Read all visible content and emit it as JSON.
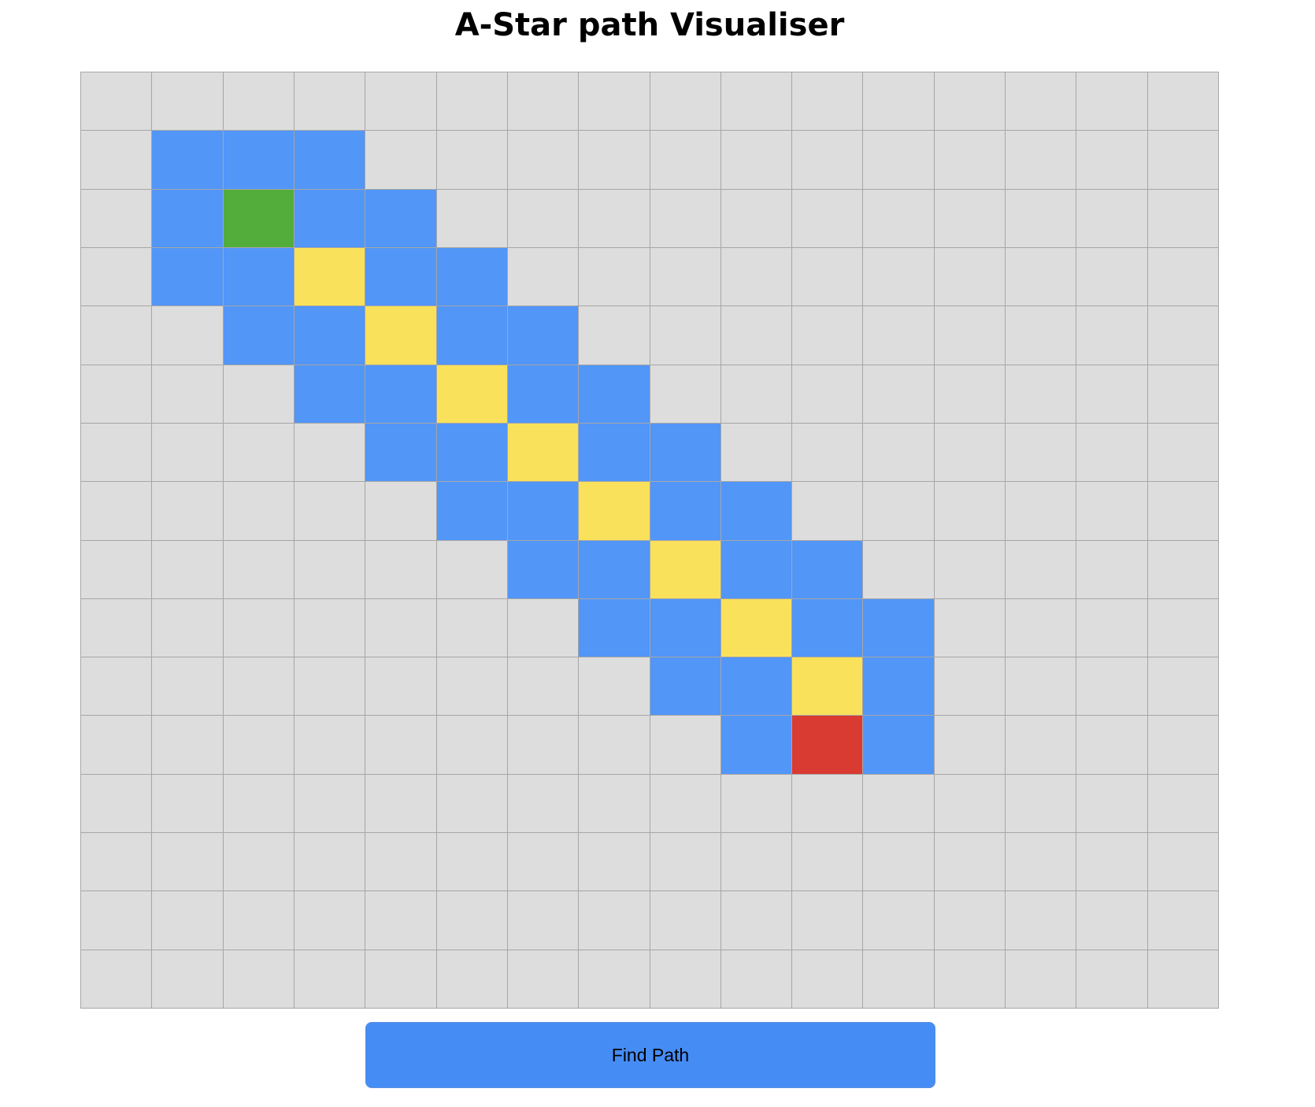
{
  "page": {
    "title": "A-Star path Visualiser"
  },
  "button": {
    "find_path_label": "Find Path"
  },
  "grid": {
    "rows": 16,
    "cols": 16,
    "legend": {
      "empty": "#dddddd",
      "explored": "#5296f7",
      "path": "#f9e15b",
      "start": "#53ad3b",
      "end": "#d93a31"
    },
    "cells": [
      "................",
      ".EEE............",
      ".ESEE...........",
      ".EEPEE..........",
      "..EEPEE.........",
      "...EEPEE........",
      "....EEPEE.......",
      ".....EEPEE......",
      "......EEPEE.....",
      ".......EEPEE....",
      "........EEPE....",
      ".........ETE....",
      "................",
      "................",
      "................",
      "................"
    ]
  }
}
